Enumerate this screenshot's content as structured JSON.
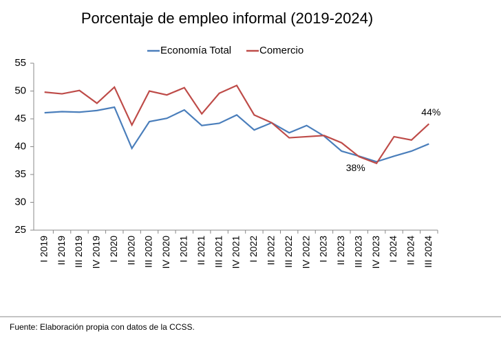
{
  "chart_data": {
    "type": "line",
    "title": "Porcentaje de empleo informal (2019-2024)",
    "categories": [
      "I 2019",
      "II 2019",
      "III 2019",
      "IV 2019",
      "I 2020",
      "II 2020",
      "III 2020",
      "IV 2020",
      "I 2021",
      "II 2021",
      "III 2021",
      "IV 2021",
      "I 2022",
      "II 2022",
      "III 2022",
      "IV 2022",
      "I 2023",
      "II 2023",
      "III 2023",
      "IV 2023",
      "I 2024",
      "II 2024",
      "III 2024"
    ],
    "series": [
      {
        "name": "Economía Total",
        "color": "#4a7ebb",
        "values": [
          46.1,
          46.3,
          46.2,
          46.5,
          47.1,
          39.7,
          44.5,
          45.1,
          46.6,
          43.8,
          44.2,
          45.7,
          43.0,
          44.3,
          42.5,
          43.8,
          41.9,
          39.2,
          38.3,
          37.3,
          38.3,
          39.2,
          40.5
        ],
        "value_labels": [
          null,
          null,
          null,
          null,
          null,
          null,
          null,
          null,
          null,
          null,
          null,
          null,
          null,
          null,
          null,
          null,
          null,
          null,
          "38%",
          null,
          null,
          null,
          null
        ]
      },
      {
        "name": "Comercio",
        "color": "#be4b48",
        "values": [
          49.8,
          49.5,
          50.1,
          47.8,
          50.7,
          43.9,
          50.0,
          49.3,
          50.6,
          45.9,
          49.6,
          51.0,
          45.7,
          44.3,
          41.6,
          41.8,
          42.0,
          40.7,
          38.2,
          37.0,
          41.8,
          41.2,
          44.1
        ],
        "value_labels": [
          null,
          null,
          null,
          null,
          null,
          null,
          null,
          null,
          null,
          null,
          null,
          null,
          null,
          null,
          null,
          null,
          null,
          null,
          null,
          null,
          null,
          null,
          "44%"
        ]
      }
    ],
    "ylim": [
      25,
      55
    ],
    "yticks": [
      25,
      30,
      35,
      40,
      45,
      50,
      55
    ],
    "grid": false,
    "legend": "top",
    "source": "Fuente: Elaboración propia con datos de la CCSS."
  }
}
